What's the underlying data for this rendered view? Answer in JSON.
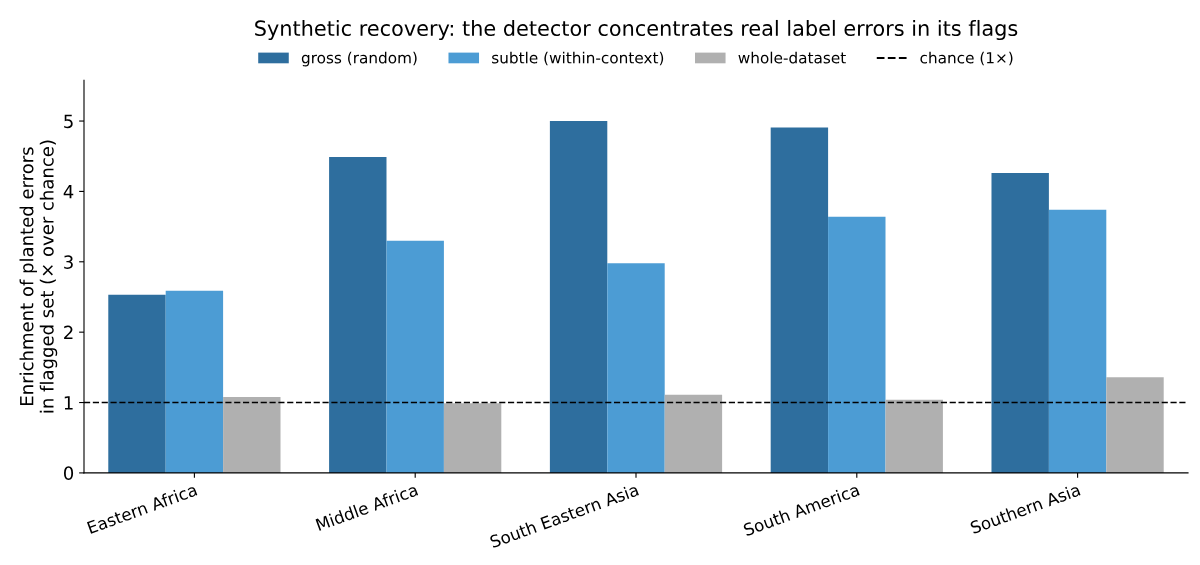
{
  "chart_data": {
    "type": "bar",
    "title": "Synthetic recovery: the detector concentrates real label errors in its flags",
    "ylabel": "Enrichment of planted errors\nin flagged set (× over chance)",
    "categories": [
      "Eastern Africa",
      "Middle Africa",
      "South Eastern Asia",
      "South America",
      "Southern Asia"
    ],
    "series": [
      {
        "name": "gross (random)",
        "color": "#2e6e9e",
        "values": [
          2.53,
          4.49,
          5.0,
          4.91,
          4.26
        ]
      },
      {
        "name": "subtle (within-context)",
        "color": "#4c9cd4",
        "values": [
          2.59,
          3.3,
          2.98,
          3.64,
          3.74
        ]
      },
      {
        "name": "whole-dataset",
        "color": "#b0b0b0",
        "values": [
          1.08,
          0.99,
          1.11,
          1.04,
          1.36
        ]
      }
    ],
    "ylim": [
      0,
      5.58
    ],
    "yticks": [
      0,
      1,
      2,
      3,
      4,
      5
    ],
    "ref_lines": [
      {
        "axis": "y",
        "value": 1,
        "label": "chance (1×)",
        "color": "#000000",
        "line_style": "dashed"
      }
    ],
    "legend": "top",
    "grid": false
  }
}
